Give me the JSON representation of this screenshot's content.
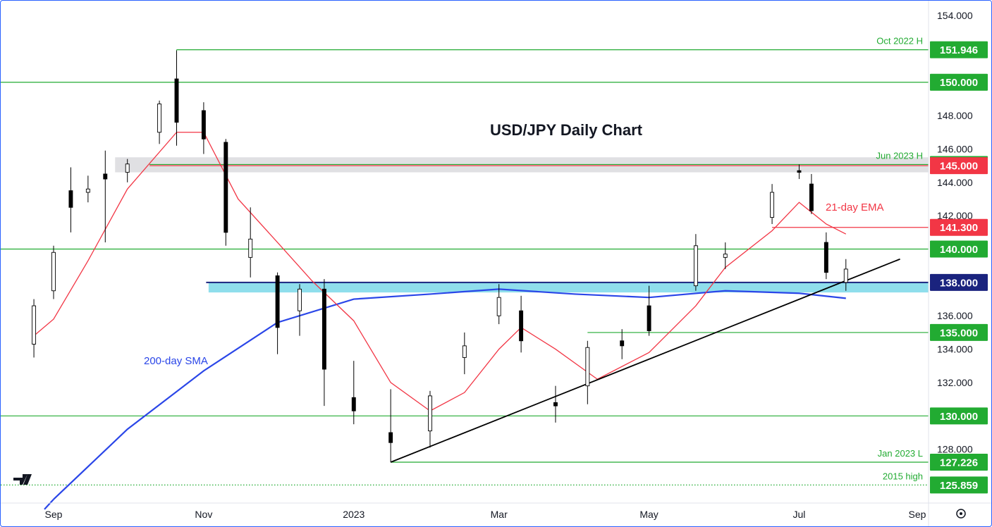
{
  "chart_data": {
    "type": "candlestick",
    "title": "USD/JPY Daily Chart",
    "y_axis": {
      "range": [
        124.8,
        154.9
      ],
      "ticks": [
        "154.000",
        "152.000",
        "150.000",
        "148.000",
        "146.000",
        "144.000",
        "142.000",
        "140.000",
        "138.000",
        "136.000",
        "134.000",
        "132.000",
        "130.000",
        "128.000",
        "126.000"
      ]
    },
    "x_axis": {
      "ticks": [
        "Sep",
        "Nov",
        "2023",
        "Mar",
        "May",
        "Jul",
        "Sep"
      ],
      "tick_positions_dates": [
        "2022-09-01",
        "2022-11-01",
        "2023-01-01",
        "2023-03-01",
        "2023-05-01",
        "2023-07-01",
        "2023-09-01"
      ]
    },
    "horizontal_levels": [
      {
        "value": 151.946,
        "label": "151.946",
        "annotation": "Oct 2022 H",
        "color": "#22ab32",
        "start": "2022-10-21"
      },
      {
        "value": 150.0,
        "label": "150.000",
        "annotation": "",
        "color": "#22ab32",
        "start": "full"
      },
      {
        "value": 145.071,
        "label": "145.071",
        "annotation": "Jun 2023 H",
        "color": "#22ab32",
        "start": "2022-10-10"
      },
      {
        "value": 145.0,
        "label": "145.000",
        "annotation": "",
        "color": "#f23645",
        "start": "2022-10-10"
      },
      {
        "value": 141.3,
        "label": "141.300",
        "annotation": "",
        "color": "#f23645",
        "start": "2023-06-20"
      },
      {
        "value": 140.0,
        "label": "140.000",
        "annotation": "",
        "color": "#22ab32",
        "start": "full"
      },
      {
        "value": 138.0,
        "label": "138.000",
        "annotation": "",
        "color": "#1a237e",
        "start": "2022-11-02"
      },
      {
        "value": 135.0,
        "label": "135.000",
        "annotation": "",
        "color": "#22ab32",
        "start": "2023-04-06"
      },
      {
        "value": 130.0,
        "label": "130.000",
        "annotation": "",
        "color": "#22ab32",
        "start": "full"
      },
      {
        "value": 127.226,
        "label": "127.226",
        "annotation": "Jan 2023 L",
        "color": "#22ab32",
        "start": "2023-01-16"
      },
      {
        "value": 125.859,
        "label": "125.859",
        "annotation": "2015 high",
        "color": "#22ab32",
        "start": "full",
        "dotted": true
      }
    ],
    "zones": [
      {
        "from": 144.6,
        "to": 145.5,
        "color": "#e0e0e3",
        "start": "2022-09-26"
      },
      {
        "from": 137.4,
        "to": 138.0,
        "color": "#8fdeec",
        "start": "2022-11-03"
      }
    ],
    "trendline": {
      "points": [
        [
          "2023-01-16",
          127.226
        ],
        [
          "2023-08-11",
          139.4
        ]
      ],
      "color": "#000000"
    },
    "indicators": [
      {
        "name": "21-day EMA",
        "color": "#f23645"
      },
      {
        "name": "200-day SMA",
        "color": "#2a46e8"
      }
    ],
    "sma_200": [
      [
        "2022-09-01",
        125.0
      ],
      [
        "2022-10-01",
        129.2
      ],
      [
        "2022-11-01",
        132.7
      ],
      [
        "2022-12-01",
        135.6
      ],
      [
        "2023-01-01",
        137.0
      ],
      [
        "2023-02-01",
        137.3
      ],
      [
        "2023-03-01",
        137.6
      ],
      [
        "2023-04-01",
        137.3
      ],
      [
        "2023-05-01",
        137.1
      ],
      [
        "2023-06-01",
        137.5
      ],
      [
        "2023-07-01",
        137.35
      ],
      [
        "2023-07-20",
        137.05
      ]
    ],
    "ema_21": [
      [
        "2022-08-24",
        134.8
      ],
      [
        "2022-09-01",
        135.8
      ],
      [
        "2022-09-15",
        139.3
      ],
      [
        "2022-10-01",
        143.6
      ],
      [
        "2022-10-21",
        147.0
      ],
      [
        "2022-11-01",
        147.0
      ],
      [
        "2022-11-15",
        143.0
      ],
      [
        "2022-12-01",
        140.4
      ],
      [
        "2022-12-15",
        138.1
      ],
      [
        "2023-01-01",
        135.7
      ],
      [
        "2023-01-16",
        132.0
      ],
      [
        "2023-02-01",
        130.3
      ],
      [
        "2023-02-15",
        131.4
      ],
      [
        "2023-03-01",
        134.0
      ],
      [
        "2023-03-10",
        135.3
      ],
      [
        "2023-03-24",
        134.0
      ],
      [
        "2023-04-10",
        132.2
      ],
      [
        "2023-05-01",
        133.8
      ],
      [
        "2023-05-20",
        136.6
      ],
      [
        "2023-06-01",
        138.9
      ],
      [
        "2023-06-20",
        141.1
      ],
      [
        "2023-07-01",
        142.8
      ],
      [
        "2023-07-12",
        141.5
      ],
      [
        "2023-07-20",
        140.9
      ]
    ],
    "candles_ohlc": [
      [
        "2022-08-24",
        134.3,
        137.0,
        133.5,
        136.6
      ],
      [
        "2022-09-01",
        137.5,
        140.2,
        137.0,
        139.8
      ],
      [
        "2022-09-08",
        143.5,
        144.9,
        141.0,
        142.5
      ],
      [
        "2022-09-15",
        143.4,
        144.4,
        142.8,
        143.6
      ],
      [
        "2022-09-22",
        144.5,
        145.9,
        140.4,
        144.2
      ],
      [
        "2022-10-01",
        144.6,
        145.4,
        144.0,
        145.1
      ],
      [
        "2022-10-14",
        147.0,
        148.9,
        146.3,
        148.7
      ],
      [
        "2022-10-21",
        150.2,
        151.9,
        146.2,
        147.6
      ],
      [
        "2022-11-01",
        148.3,
        148.8,
        145.7,
        146.6
      ],
      [
        "2022-11-10",
        146.4,
        146.6,
        140.2,
        141.0
      ],
      [
        "2022-11-20",
        139.5,
        142.5,
        138.3,
        140.6
      ],
      [
        "2022-12-01",
        138.4,
        138.6,
        133.7,
        135.3
      ],
      [
        "2022-12-10",
        136.3,
        137.9,
        134.8,
        137.6
      ],
      [
        "2022-12-20",
        137.6,
        138.2,
        130.6,
        132.8
      ],
      [
        "2023-01-01",
        131.1,
        133.3,
        129.5,
        130.3
      ],
      [
        "2023-01-16",
        129.0,
        131.6,
        127.226,
        128.4
      ],
      [
        "2023-02-01",
        129.1,
        131.5,
        128.1,
        131.2
      ],
      [
        "2023-02-15",
        133.5,
        135.0,
        132.5,
        134.2
      ],
      [
        "2023-03-01",
        136.0,
        137.9,
        135.5,
        137.1
      ],
      [
        "2023-03-10",
        136.3,
        137.2,
        133.8,
        134.5
      ],
      [
        "2023-03-24",
        130.8,
        131.8,
        129.6,
        130.6
      ],
      [
        "2023-04-06",
        131.8,
        134.5,
        130.7,
        134.1
      ],
      [
        "2023-04-20",
        134.5,
        135.2,
        133.4,
        134.2
      ],
      [
        "2023-05-01",
        136.6,
        137.8,
        134.8,
        135.1
      ],
      [
        "2023-05-20",
        137.8,
        140.9,
        137.5,
        140.2
      ],
      [
        "2023-06-01",
        139.5,
        140.4,
        138.8,
        139.7
      ],
      [
        "2023-06-20",
        141.9,
        143.9,
        141.5,
        143.4
      ],
      [
        "2023-07-01",
        144.7,
        145.071,
        144.2,
        144.6
      ],
      [
        "2023-07-06",
        143.9,
        144.5,
        142.1,
        142.3
      ],
      [
        "2023-07-12",
        140.4,
        141.0,
        138.2,
        138.6
      ],
      [
        "2023-07-20",
        138.0,
        139.4,
        137.5,
        138.8
      ]
    ],
    "axis_labels_style": {
      "level_label_bg": "#22ab32",
      "red_label_bg": "#f23645",
      "blue_label_bg": "#1a237e"
    },
    "xlabel": "",
    "ylabel": ""
  }
}
